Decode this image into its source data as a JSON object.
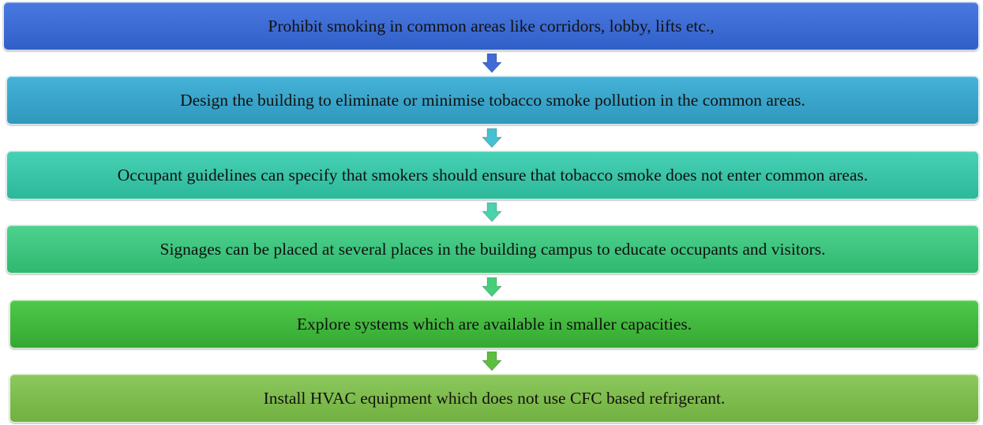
{
  "steps": [
    {
      "text": "Prohibit smoking in common areas like corridors, lobby, lifts etc.,",
      "color_top": "#4a79e0",
      "color_bottom": "#2f5fc8"
    },
    {
      "text": "Design the building to eliminate or minimise tobacco smoke pollution in the common areas.",
      "color_top": "#45b2d8",
      "color_bottom": "#2f98bd"
    },
    {
      "text": "Occupant guidelines can specify that smokers should ensure that tobacco smoke does not enter common areas.",
      "color_top": "#47d1b5",
      "color_bottom": "#2db89a"
    },
    {
      "text": "Signages can be placed at several places in the building campus to educate occupants and visitors.",
      "color_top": "#4ed28e",
      "color_bottom": "#2fb86f"
    },
    {
      "text": "Explore systems which are available in smaller capacities.",
      "color_top": "#4fc94a",
      "color_bottom": "#35a832"
    },
    {
      "text": "Install HVAC equipment which does not use CFC based refrigerant.",
      "color_top": "#8cc85c",
      "color_bottom": "#72b041"
    }
  ],
  "arrows": [
    {
      "color": "#3e6bd6"
    },
    {
      "color": "#46c0d3"
    },
    {
      "color": "#48d3ae"
    },
    {
      "color": "#46cf7a"
    },
    {
      "color": "#5cbf3e"
    },
    {
      "color": "#82c04c"
    }
  ]
}
